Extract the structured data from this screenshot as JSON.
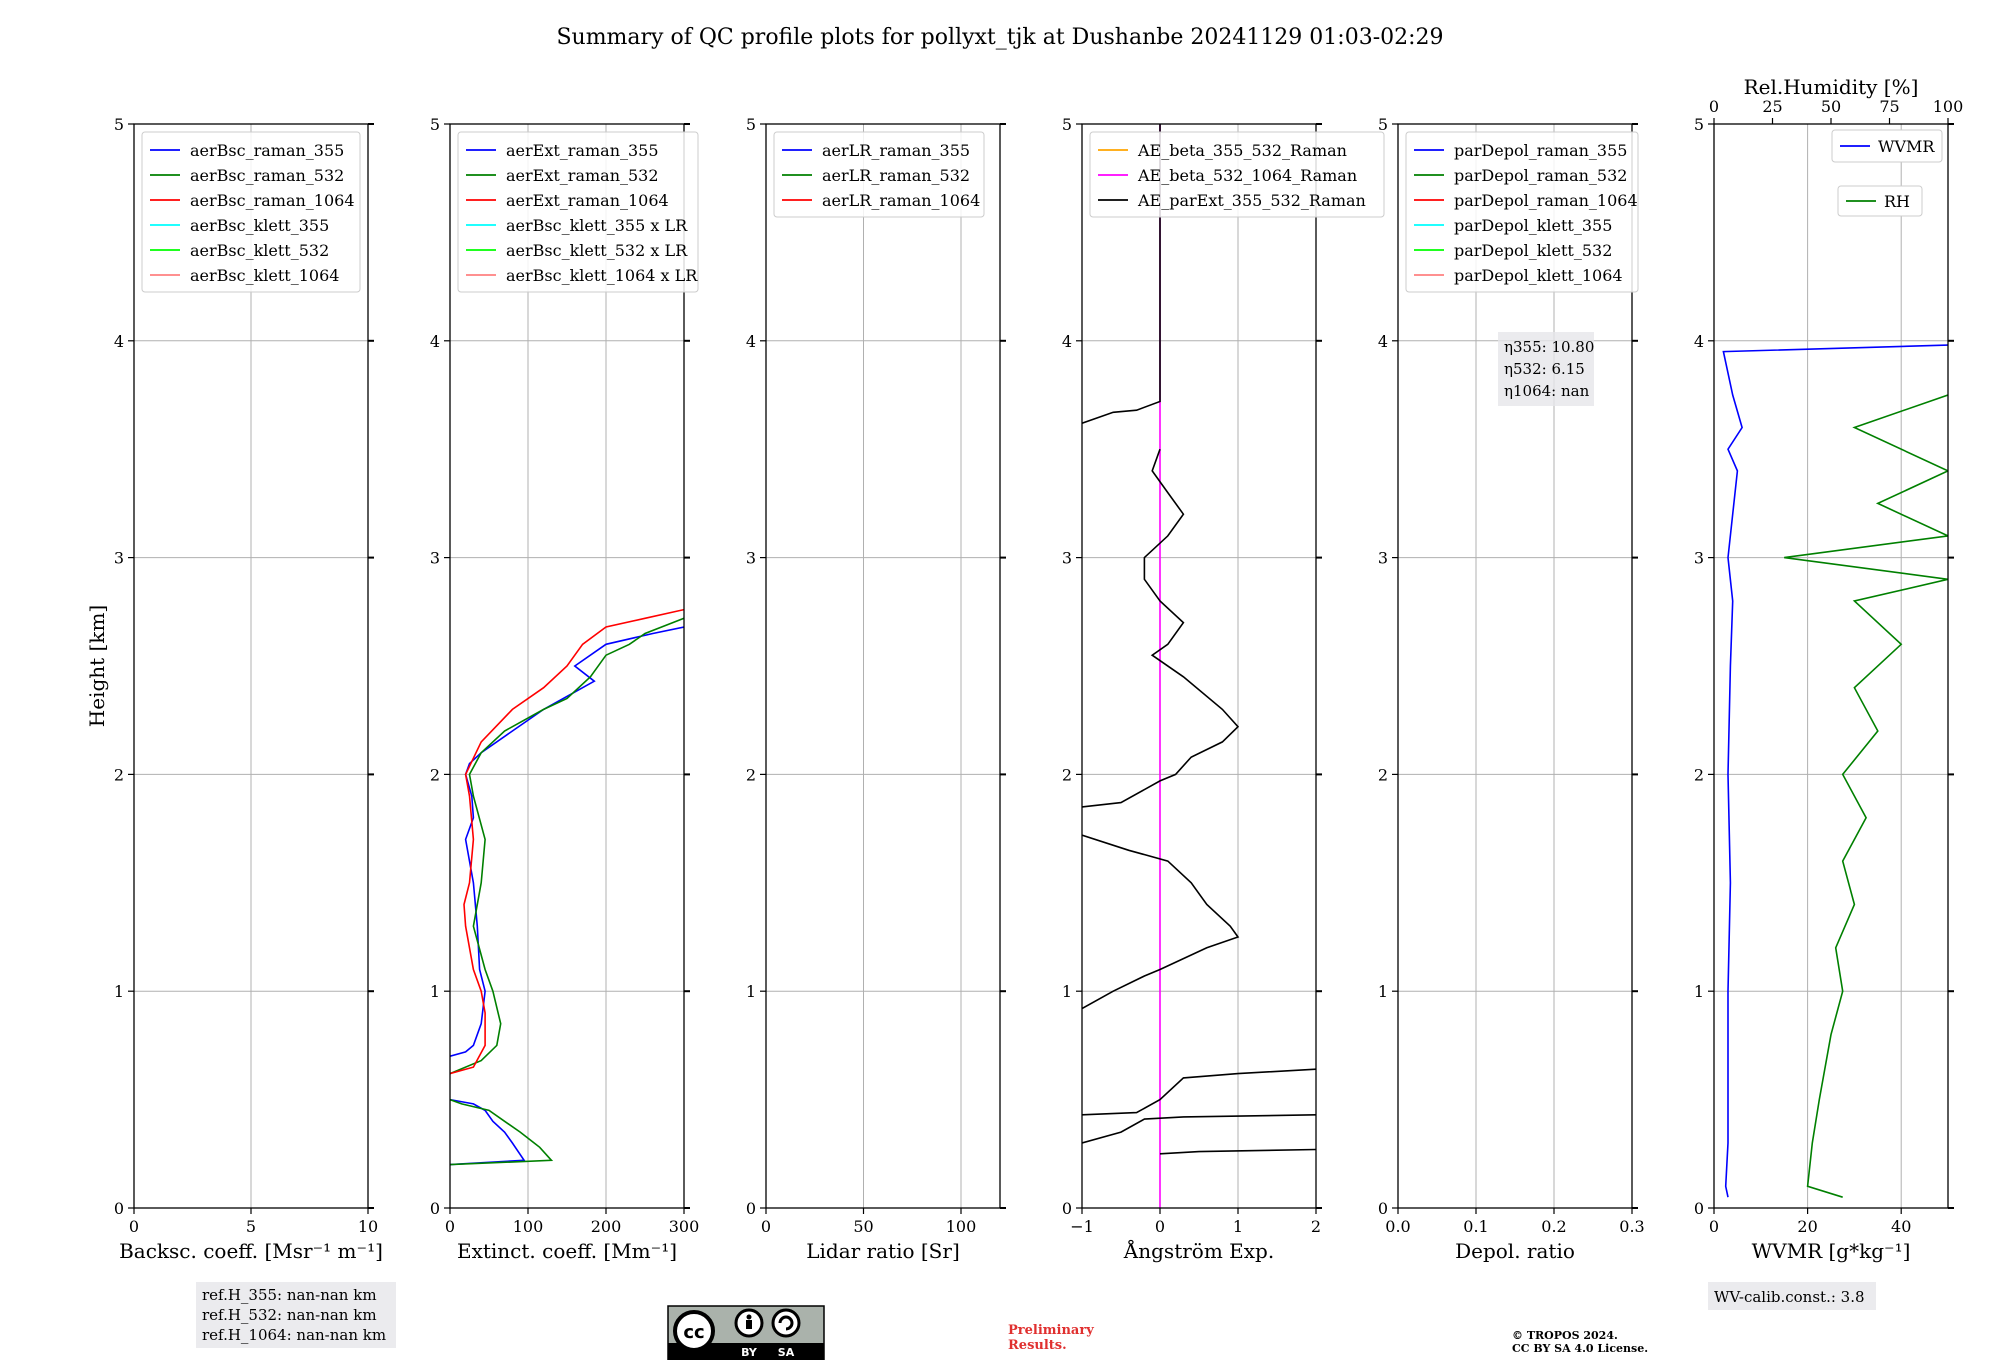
{
  "title": "Summary of QC profile plots for pollyxt_tjk at Dushanbe 20241129 01:03-02:29",
  "colors": {
    "c355": "#0000ff",
    "c532": "#008000",
    "c1064": "#ff0000",
    "k355": "#00ffff",
    "k532": "#00ff00",
    "k1064": "#ff8080",
    "ae1": "#ffa500",
    "ae2": "#ff00ff",
    "ae3": "#000000",
    "prelim": "#e0302f"
  },
  "annotations": {
    "ref_h": [
      "ref.H_355: nan-nan km",
      "ref.H_532: nan-nan km",
      "ref.H_1064: nan-nan km"
    ],
    "eta": [
      "η355: 10.80",
      "η532: 6.15",
      "η1064: nan"
    ],
    "wv_calib": "WV-calib.const.: 3.8",
    "preliminary": [
      "Preliminary",
      "Results."
    ],
    "copyright": [
      "© TROPOS 2024.",
      "CC BY SA 4.0 License."
    ],
    "license_badge": [
      "cc",
      "BY",
      "SA"
    ]
  },
  "chart_data": [
    {
      "type": "line",
      "panel": "backscatter",
      "xlabel": "Backsc. coeff. [Msr⁻¹ m⁻¹]",
      "ylabel": "Height [km]",
      "xlim": [
        0,
        10
      ],
      "xticks": [
        0,
        5,
        10
      ],
      "ylim": [
        0,
        5
      ],
      "yticks": [
        0,
        1,
        2,
        3,
        4,
        5
      ],
      "legend": [
        "aerBsc_raman_355",
        "aerBsc_raman_532",
        "aerBsc_raman_1064",
        "aerBsc_klett_355",
        "aerBsc_klett_532",
        "aerBsc_klett_1064"
      ],
      "legend_colors": [
        "c355",
        "c532",
        "c1064",
        "k355",
        "k532",
        "k1064"
      ],
      "series": []
    },
    {
      "type": "line",
      "panel": "extinction",
      "xlabel": "Extinct. coeff. [Mm⁻¹]",
      "xlim": [
        0,
        300
      ],
      "xticks": [
        0,
        100,
        200,
        300
      ],
      "ylim": [
        0,
        5
      ],
      "yticks": [
        0,
        1,
        2,
        3,
        4,
        5
      ],
      "legend": [
        "aerExt_raman_355",
        "aerExt_raman_532",
        "aerExt_raman_1064",
        "aerBsc_klett_355 x LR",
        "aerBsc_klett_532 x LR",
        "aerBsc_klett_1064 x LR"
      ],
      "legend_colors": [
        "c355",
        "c532",
        "c1064",
        "k355",
        "k532",
        "k1064"
      ],
      "series": [
        {
          "name": "aerExt_raman_355",
          "color": "c355",
          "segments": [
            [
              [
                0,
                0.2
              ],
              [
                95,
                0.22
              ],
              [
                80,
                0.3
              ],
              [
                70,
                0.35
              ],
              [
                55,
                0.4
              ],
              [
                45,
                0.45
              ],
              [
                30,
                0.48
              ],
              [
                0,
                0.5
              ]
            ],
            [
              [
                0,
                0.7
              ],
              [
                20,
                0.72
              ],
              [
                30,
                0.75
              ],
              [
                40,
                0.85
              ],
              [
                45,
                1.0
              ],
              [
                38,
                1.1
              ],
              [
                35,
                1.3
              ],
              [
                30,
                1.5
              ],
              [
                25,
                1.6
              ],
              [
                20,
                1.7
              ],
              [
                30,
                1.8
              ],
              [
                28,
                1.9
              ],
              [
                20,
                2.0
              ],
              [
                25,
                2.05
              ],
              [
                40,
                2.1
              ],
              [
                80,
                2.2
              ],
              [
                120,
                2.3
              ],
              [
                170,
                2.4
              ],
              [
                185,
                2.43
              ],
              [
                160,
                2.5
              ],
              [
                200,
                2.6
              ],
              [
                260,
                2.65
              ],
              [
                300,
                2.68
              ]
            ]
          ]
        },
        {
          "name": "aerExt_raman_532",
          "color": "c532",
          "segments": [
            [
              [
                0,
                0.2
              ],
              [
                130,
                0.22
              ],
              [
                115,
                0.28
              ],
              [
                90,
                0.35
              ],
              [
                70,
                0.4
              ],
              [
                50,
                0.45
              ],
              [
                15,
                0.48
              ],
              [
                0,
                0.5
              ]
            ],
            [
              [
                0,
                0.62
              ],
              [
                40,
                0.68
              ],
              [
                60,
                0.75
              ],
              [
                65,
                0.85
              ],
              [
                55,
                1.0
              ],
              [
                45,
                1.1
              ],
              [
                30,
                1.3
              ],
              [
                40,
                1.5
              ],
              [
                45,
                1.7
              ],
              [
                30,
                1.9
              ],
              [
                25,
                2.0
              ],
              [
                40,
                2.1
              ],
              [
                70,
                2.2
              ],
              [
                120,
                2.3
              ],
              [
                150,
                2.35
              ],
              [
                180,
                2.45
              ],
              [
                200,
                2.55
              ],
              [
                230,
                2.6
              ],
              [
                250,
                2.65
              ],
              [
                300,
                2.72
              ]
            ]
          ]
        },
        {
          "name": "aerExt_raman_1064",
          "color": "c1064",
          "segments": [
            [
              [
                0,
                0.62
              ],
              [
                30,
                0.65
              ],
              [
                45,
                0.75
              ],
              [
                45,
                0.9
              ],
              [
                40,
                1.0
              ],
              [
                30,
                1.1
              ],
              [
                20,
                1.3
              ],
              [
                18,
                1.4
              ],
              [
                25,
                1.5
              ],
              [
                30,
                1.7
              ],
              [
                25,
                1.9
              ],
              [
                20,
                2.0
              ],
              [
                40,
                2.15
              ],
              [
                80,
                2.3
              ],
              [
                120,
                2.4
              ],
              [
                150,
                2.5
              ],
              [
                170,
                2.6
              ],
              [
                200,
                2.68
              ],
              [
                250,
                2.72
              ],
              [
                300,
                2.76
              ]
            ]
          ]
        }
      ]
    },
    {
      "type": "line",
      "panel": "lidar_ratio",
      "xlabel": "Lidar ratio [Sr]",
      "xlim": [
        0,
        120
      ],
      "xticks": [
        0,
        50,
        100
      ],
      "ylim": [
        0,
        5
      ],
      "yticks": [
        0,
        1,
        2,
        3,
        4,
        5
      ],
      "legend": [
        "aerLR_raman_355",
        "aerLR_raman_532",
        "aerLR_raman_1064"
      ],
      "legend_colors": [
        "c355",
        "c532",
        "c1064"
      ],
      "series": []
    },
    {
      "type": "line",
      "panel": "angstrom",
      "xlabel": "Ångström Exp.",
      "xlim": [
        -1,
        2
      ],
      "xticks": [
        -1,
        0,
        1,
        2
      ],
      "xticklabels": [
        "−1",
        "0",
        "1",
        "2"
      ],
      "ylim": [
        0,
        5
      ],
      "yticks": [
        0,
        1,
        2,
        3,
        4,
        5
      ],
      "legend": [
        "AE_beta_355_532_Raman",
        "AE_beta_532_1064_Raman",
        "AE_parExt_355_532_Raman"
      ],
      "legend_colors": [
        "ae1",
        "ae2",
        "ae3"
      ],
      "series": [
        {
          "name": "AE_beta_532_1064_Raman",
          "color": "ae2",
          "segments": [
            [
              [
                0,
                0.0
              ],
              [
                0,
                5.0
              ]
            ]
          ]
        },
        {
          "name": "AE_parExt_355_532_Raman",
          "color": "ae3",
          "segments": [
            [
              [
                0,
                0.25
              ],
              [
                0.5,
                0.26
              ],
              [
                2,
                0.27
              ]
            ],
            [
              [
                -1,
                0.3
              ],
              [
                -0.5,
                0.35
              ],
              [
                -0.2,
                0.41
              ],
              [
                0.3,
                0.42
              ],
              [
                2,
                0.43
              ]
            ],
            [
              [
                -1,
                0.43
              ],
              [
                -0.3,
                0.44
              ],
              [
                0,
                0.5
              ],
              [
                0.3,
                0.6
              ],
              [
                1,
                0.62
              ],
              [
                2,
                0.64
              ]
            ],
            [
              [
                -1,
                0.92
              ],
              [
                -0.6,
                1.0
              ],
              [
                -0.2,
                1.07
              ],
              [
                0,
                1.1
              ],
              [
                0.6,
                1.2
              ],
              [
                1,
                1.25
              ],
              [
                0.9,
                1.3
              ],
              [
                0.6,
                1.4
              ],
              [
                0.4,
                1.5
              ],
              [
                0.1,
                1.6
              ],
              [
                -0.4,
                1.65
              ],
              [
                -1,
                1.72
              ]
            ],
            [
              [
                -1,
                1.85
              ],
              [
                -0.5,
                1.87
              ],
              [
                0,
                1.97
              ],
              [
                0.2,
                2.0
              ],
              [
                0.4,
                2.08
              ],
              [
                0.8,
                2.15
              ],
              [
                1.0,
                2.22
              ],
              [
                0.8,
                2.3
              ],
              [
                0.3,
                2.45
              ],
              [
                -0.1,
                2.55
              ],
              [
                0.1,
                2.6
              ],
              [
                0.3,
                2.7
              ],
              [
                0,
                2.8
              ],
              [
                -0.2,
                2.9
              ],
              [
                -0.2,
                3.0
              ],
              [
                0.1,
                3.1
              ],
              [
                0.3,
                3.2
              ],
              [
                0.1,
                3.3
              ],
              [
                -0.1,
                3.4
              ],
              [
                0,
                3.5
              ]
            ],
            [
              [
                -1,
                3.62
              ],
              [
                -0.6,
                3.67
              ],
              [
                -0.3,
                3.68
              ],
              [
                0,
                3.72
              ],
              [
                0,
                5.0
              ]
            ]
          ]
        }
      ]
    },
    {
      "type": "line",
      "panel": "depolarization",
      "xlabel": "Depol. ratio",
      "xlim": [
        0,
        0.3
      ],
      "xticks": [
        0,
        0.1,
        0.2,
        0.3
      ],
      "xticklabels": [
        "0.0",
        "0.1",
        "0.2",
        "0.3"
      ],
      "ylim": [
        0,
        5
      ],
      "yticks": [
        0,
        1,
        2,
        3,
        4,
        5
      ],
      "legend": [
        "parDepol_raman_355",
        "parDepol_raman_532",
        "parDepol_raman_1064",
        "parDepol_klett_355",
        "parDepol_klett_532",
        "parDepol_klett_1064"
      ],
      "legend_colors": [
        "c355",
        "c532",
        "c1064",
        "k355",
        "k532",
        "k1064"
      ],
      "series": []
    },
    {
      "type": "line",
      "panel": "water_vapor",
      "xlabel": "WVMR [g*kg⁻¹]",
      "x2label": "Rel.Humidity [%]",
      "xlim": [
        0,
        50
      ],
      "xticks": [
        0,
        20,
        40
      ],
      "x2lim": [
        0,
        100
      ],
      "x2ticks": [
        0,
        25,
        50,
        75,
        100
      ],
      "ylim": [
        0,
        5
      ],
      "yticks": [
        0,
        1,
        2,
        3,
        4,
        5
      ],
      "legend": [
        "WVMR",
        "RH"
      ],
      "legend_colors": [
        "c355",
        "c532"
      ],
      "series": [
        {
          "name": "WVMR",
          "color": "c355",
          "axis": "bottom",
          "segments": [
            [
              [
                3,
                0.05
              ],
              [
                2.5,
                0.1
              ],
              [
                3,
                0.3
              ],
              [
                3,
                0.5
              ],
              [
                3,
                1.0
              ],
              [
                3.5,
                1.5
              ],
              [
                3,
                2.0
              ],
              [
                3.5,
                2.5
              ],
              [
                4,
                2.8
              ],
              [
                3,
                3.0
              ],
              [
                4,
                3.2
              ],
              [
                5,
                3.4
              ],
              [
                3,
                3.5
              ],
              [
                6,
                3.6
              ],
              [
                4,
                3.75
              ],
              [
                2,
                3.95
              ],
              [
                50,
                3.98
              ]
            ]
          ]
        },
        {
          "name": "RH",
          "color": "c532",
          "axis": "top",
          "segments": [
            [
              [
                55,
                0.05
              ],
              [
                40,
                0.1
              ],
              [
                42,
                0.3
              ],
              [
                45,
                0.5
              ],
              [
                50,
                0.8
              ],
              [
                55,
                1.0
              ],
              [
                52,
                1.2
              ],
              [
                60,
                1.4
              ],
              [
                55,
                1.6
              ],
              [
                65,
                1.8
              ],
              [
                55,
                2.0
              ],
              [
                70,
                2.2
              ],
              [
                60,
                2.4
              ],
              [
                80,
                2.6
              ],
              [
                60,
                2.8
              ],
              [
                100,
                2.9
              ],
              [
                30,
                3.0
              ],
              [
                100,
                3.1
              ],
              [
                70,
                3.25
              ],
              [
                100,
                3.4
              ],
              [
                60,
                3.6
              ],
              [
                100,
                3.75
              ]
            ]
          ]
        }
      ]
    }
  ]
}
